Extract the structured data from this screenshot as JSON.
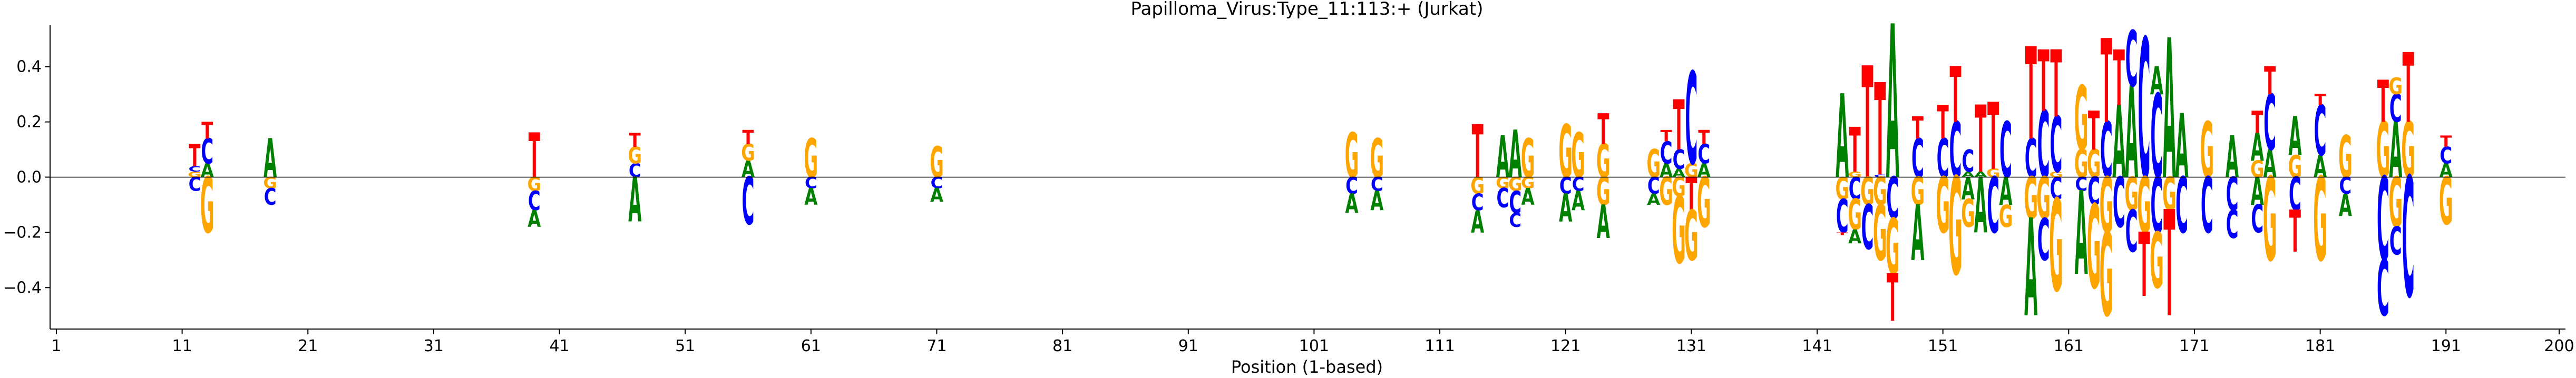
{
  "chart_data": {
    "type": "sequence-logo",
    "title": "Papilloma_Virus:Type_11:113:+  (Jurkat)",
    "xlabel": "Position (1-based)",
    "ylabel": "",
    "xlim": [
      1,
      200
    ],
    "ylim": [
      -0.55,
      0.55
    ],
    "x_ticks": [
      1,
      11,
      21,
      31,
      41,
      51,
      61,
      71,
      81,
      91,
      101,
      111,
      121,
      131,
      141,
      151,
      161,
      171,
      181,
      191,
      200
    ],
    "y_ticks": [
      -0.4,
      -0.2,
      0.0,
      0.2,
      0.4
    ],
    "y_tick_labels": [
      "−0.4",
      "−0.2",
      "0.0",
      "0.2",
      "0.4"
    ],
    "grid": false,
    "colors": {
      "A": "#008000",
      "C": "#0000ff",
      "G": "#ffa500",
      "T": "#ff0000"
    },
    "positions": [
      {
        "x": 12,
        "up": [
          [
            "G",
            0.02
          ],
          [
            "C",
            0.02
          ],
          [
            "T",
            0.08
          ]
        ],
        "down": [
          [
            "C",
            0.05
          ]
        ]
      },
      {
        "x": 13,
        "up": [
          [
            "A",
            0.05
          ],
          [
            "C",
            0.09
          ],
          [
            "T",
            0.06
          ]
        ],
        "down": [
          [
            "G",
            0.2
          ]
        ]
      },
      {
        "x": 18,
        "up": [
          [
            "A",
            0.14
          ]
        ],
        "down": [
          [
            "G",
            0.04
          ],
          [
            "C",
            0.06
          ]
        ]
      },
      {
        "x": 39,
        "up": [
          [
            "T",
            0.16
          ]
        ],
        "down": [
          [
            "G",
            0.05
          ],
          [
            "C",
            0.07
          ],
          [
            "A",
            0.06
          ]
        ]
      },
      {
        "x": 47,
        "up": [
          [
            "C",
            0.05
          ],
          [
            "G",
            0.06
          ],
          [
            "T",
            0.05
          ]
        ],
        "down": [
          [
            "A",
            0.16
          ]
        ]
      },
      {
        "x": 56,
        "up": [
          [
            "A",
            0.06
          ],
          [
            "G",
            0.06
          ],
          [
            "T",
            0.05
          ]
        ],
        "down": [
          [
            "C",
            0.17
          ]
        ]
      },
      {
        "x": 61,
        "up": [
          [
            "G",
            0.14
          ]
        ],
        "down": [
          [
            "C",
            0.04
          ],
          [
            "A",
            0.06
          ]
        ]
      },
      {
        "x": 71,
        "up": [
          [
            "G",
            0.11
          ]
        ],
        "down": [
          [
            "C",
            0.04
          ],
          [
            "A",
            0.05
          ]
        ]
      },
      {
        "x": 104,
        "up": [
          [
            "G",
            0.16
          ]
        ],
        "down": [
          [
            "C",
            0.06
          ],
          [
            "A",
            0.07
          ]
        ]
      },
      {
        "x": 106,
        "up": [
          [
            "G",
            0.14
          ]
        ],
        "down": [
          [
            "C",
            0.05
          ],
          [
            "A",
            0.07
          ]
        ]
      },
      {
        "x": 114,
        "up": [
          [
            "T",
            0.19
          ]
        ],
        "down": [
          [
            "G",
            0.06
          ],
          [
            "C",
            0.06
          ],
          [
            "A",
            0.08
          ]
        ]
      },
      {
        "x": 116,
        "up": [
          [
            "A",
            0.15
          ]
        ],
        "down": [
          [
            "G",
            0.04
          ],
          [
            "C",
            0.07
          ]
        ]
      },
      {
        "x": 117,
        "up": [
          [
            "A",
            0.17
          ]
        ],
        "down": [
          [
            "G",
            0.05
          ],
          [
            "C",
            0.08
          ],
          [
            "C",
            0.05
          ]
        ]
      },
      {
        "x": 118,
        "up": [
          [
            "G",
            0.14
          ]
        ],
        "down": [
          [
            "G",
            0.04
          ],
          [
            "A",
            0.06
          ]
        ]
      },
      {
        "x": 121,
        "up": [
          [
            "G",
            0.19
          ]
        ],
        "down": [
          [
            "C",
            0.06
          ],
          [
            "A",
            0.1
          ]
        ]
      },
      {
        "x": 122,
        "up": [
          [
            "G",
            0.16
          ]
        ],
        "down": [
          [
            "C",
            0.05
          ],
          [
            "A",
            0.07
          ]
        ]
      },
      {
        "x": 124,
        "up": [
          [
            "G",
            0.12
          ],
          [
            "T",
            0.11
          ]
        ],
        "down": [
          [
            "G",
            0.1
          ],
          [
            "A",
            0.12
          ]
        ]
      },
      {
        "x": 128,
        "up": [
          [
            "G",
            0.1
          ]
        ],
        "down": [
          [
            "C",
            0.06
          ],
          [
            "A",
            0.04
          ]
        ]
      },
      {
        "x": 129,
        "up": [
          [
            "A",
            0.05
          ],
          [
            "C",
            0.08
          ],
          [
            "T",
            0.04
          ]
        ],
        "down": [
          [
            "G",
            0.1
          ]
        ]
      },
      {
        "x": 130,
        "up": [
          [
            "A",
            0.03
          ],
          [
            "C",
            0.07
          ],
          [
            "T",
            0.18
          ]
        ],
        "down": [
          [
            "G",
            0.07
          ],
          [
            "G",
            0.24
          ]
        ]
      },
      {
        "x": 131,
        "up": [
          [
            "G",
            0.05
          ],
          [
            "C",
            0.33
          ]
        ],
        "down": [
          [
            "T",
            0.12
          ],
          [
            "G",
            0.18
          ]
        ]
      },
      {
        "x": 132,
        "up": [
          [
            "A",
            0.05
          ],
          [
            "C",
            0.07
          ],
          [
            "T",
            0.05
          ]
        ],
        "down": [
          [
            "G",
            0.18
          ]
        ]
      },
      {
        "x": 143,
        "up": [
          [
            "A",
            0.3
          ]
        ],
        "down": [
          [
            "G",
            0.08
          ],
          [
            "C",
            0.12
          ],
          [
            "T",
            0.01
          ]
        ]
      },
      {
        "x": 144,
        "up": [
          [
            "G",
            0.02
          ],
          [
            "T",
            0.16
          ]
        ],
        "down": [
          [
            "C",
            0.08
          ],
          [
            "G",
            0.11
          ],
          [
            "A",
            0.05
          ]
        ]
      },
      {
        "x": 145,
        "up": [
          [
            "T",
            0.4
          ]
        ],
        "down": [
          [
            "G",
            0.1
          ],
          [
            "C",
            0.16
          ]
        ]
      },
      {
        "x": 146,
        "up": [
          [
            "C",
            0.01
          ],
          [
            "T",
            0.33
          ]
        ],
        "down": [
          [
            "G",
            0.1
          ],
          [
            "G",
            0.2
          ]
        ]
      },
      {
        "x": 147,
        "up": [
          [
            "A",
            0.55
          ]
        ],
        "down": [
          [
            "C",
            0.15
          ],
          [
            "G",
            0.2
          ],
          [
            "T",
            0.17
          ]
        ]
      },
      {
        "x": 149,
        "up": [
          [
            "C",
            0.14
          ],
          [
            "T",
            0.08
          ]
        ],
        "down": [
          [
            "G",
            0.1
          ],
          [
            "A",
            0.2
          ]
        ]
      },
      {
        "x": 151,
        "up": [
          [
            "C",
            0.14
          ],
          [
            "T",
            0.12
          ]
        ],
        "down": [
          [
            "G",
            0.2
          ]
        ]
      },
      {
        "x": 152,
        "up": [
          [
            "C",
            0.2
          ],
          [
            "T",
            0.2
          ]
        ],
        "down": [
          [
            "G",
            0.35
          ]
        ]
      },
      {
        "x": 153,
        "up": [
          [
            "A",
            0.02
          ],
          [
            "C",
            0.08
          ]
        ],
        "down": [
          [
            "A",
            0.08
          ],
          [
            "G",
            0.1
          ]
        ]
      },
      {
        "x": 154,
        "up": [
          [
            "A",
            0.02
          ],
          [
            "T",
            0.24
          ]
        ],
        "down": [
          [
            "A",
            0.2
          ]
        ]
      },
      {
        "x": 155,
        "up": [
          [
            "G",
            0.03
          ],
          [
            "T",
            0.24
          ]
        ],
        "down": [
          [
            "C",
            0.2
          ]
        ]
      },
      {
        "x": 156,
        "up": [
          [
            "C",
            0.2
          ]
        ],
        "down": [
          [
            "A",
            0.1
          ],
          [
            "G",
            0.08
          ]
        ]
      },
      {
        "x": 158,
        "up": [
          [
            "C",
            0.14
          ],
          [
            "T",
            0.33
          ]
        ],
        "down": [
          [
            "G",
            0.15
          ],
          [
            "A",
            0.35
          ]
        ]
      },
      {
        "x": 159,
        "up": [
          [
            "C",
            0.24
          ],
          [
            "T",
            0.22
          ]
        ],
        "down": [
          [
            "G",
            0.15
          ],
          [
            "C",
            0.15
          ]
        ]
      },
      {
        "x": 160,
        "up": [
          [
            "G",
            0.02
          ],
          [
            "C",
            0.2
          ],
          [
            "T",
            0.24
          ]
        ],
        "down": [
          [
            "C",
            0.08
          ],
          [
            "G",
            0.33
          ]
        ]
      },
      {
        "x": 162,
        "up": [
          [
            "G",
            0.1
          ],
          [
            "G",
            0.23
          ]
        ],
        "down": [
          [
            "C",
            0.05
          ],
          [
            "A",
            0.3
          ]
        ]
      },
      {
        "x": 163,
        "up": [
          [
            "G",
            0.1
          ],
          [
            "T",
            0.14
          ]
        ],
        "down": [
          [
            "C",
            0.1
          ],
          [
            "G",
            0.3
          ]
        ]
      },
      {
        "x": 164,
        "up": [
          [
            "C",
            0.2
          ],
          [
            "T",
            0.3
          ]
        ],
        "down": [
          [
            "G",
            0.2
          ],
          [
            "G",
            0.3
          ]
        ]
      },
      {
        "x": 165,
        "up": [
          [
            "A",
            0.26
          ],
          [
            "T",
            0.2
          ]
        ],
        "down": [
          [
            "C",
            0.18
          ]
        ]
      },
      {
        "x": 166,
        "up": [
          [
            "A",
            0.33
          ],
          [
            "C",
            0.2
          ]
        ],
        "down": [
          [
            "G",
            0.12
          ],
          [
            "C",
            0.15
          ]
        ]
      },
      {
        "x": 167,
        "up": [
          [
            "C",
            0.5
          ]
        ],
        "down": [
          [
            "G",
            0.2
          ],
          [
            "T",
            0.23
          ]
        ]
      },
      {
        "x": 168,
        "up": [
          [
            "C",
            0.3
          ],
          [
            "A",
            0.1
          ]
        ],
        "down": [
          [
            "C",
            0.2
          ],
          [
            "G",
            0.2
          ]
        ]
      },
      {
        "x": 169,
        "up": [
          [
            "A",
            0.5
          ]
        ],
        "down": [
          [
            "G",
            0.12
          ],
          [
            "T",
            0.38
          ]
        ]
      },
      {
        "x": 170,
        "up": [
          [
            "A",
            0.23
          ]
        ],
        "down": [
          [
            "C",
            0.2
          ]
        ]
      },
      {
        "x": 172,
        "up": [
          [
            "G",
            0.2
          ]
        ],
        "down": [
          [
            "C",
            0.2
          ]
        ]
      },
      {
        "x": 174,
        "up": [
          [
            "A",
            0.15
          ]
        ],
        "down": [
          [
            "C",
            0.12
          ],
          [
            "C",
            0.1
          ]
        ]
      },
      {
        "x": 176,
        "up": [
          [
            "G",
            0.06
          ],
          [
            "A",
            0.1
          ],
          [
            "T",
            0.08
          ]
        ],
        "down": [
          [
            "A",
            0.1
          ],
          [
            "C",
            0.1
          ]
        ]
      },
      {
        "x": 177,
        "up": [
          [
            "A",
            0.1
          ],
          [
            "C",
            0.2
          ],
          [
            "T",
            0.1
          ]
        ],
        "down": [
          [
            "G",
            0.3
          ]
        ]
      },
      {
        "x": 179,
        "up": [
          [
            "G",
            0.08
          ],
          [
            "A",
            0.14
          ]
        ],
        "down": [
          [
            "C",
            0.12
          ],
          [
            "T",
            0.15
          ]
        ]
      },
      {
        "x": 181,
        "up": [
          [
            "A",
            0.08
          ],
          [
            "C",
            0.18
          ],
          [
            "T",
            0.04
          ]
        ],
        "down": [
          [
            "G",
            0.3
          ]
        ]
      },
      {
        "x": 183,
        "up": [
          [
            "G",
            0.15
          ]
        ],
        "down": [
          [
            "C",
            0.06
          ],
          [
            "A",
            0.08
          ]
        ]
      },
      {
        "x": 186,
        "up": [
          [
            "G",
            0.2
          ],
          [
            "T",
            0.15
          ]
        ],
        "down": [
          [
            "C",
            0.3
          ],
          [
            "C",
            0.2
          ]
        ]
      },
      {
        "x": 187,
        "up": [
          [
            "A",
            0.2
          ],
          [
            "C",
            0.1
          ],
          [
            "G",
            0.06
          ]
        ],
        "down": [
          [
            "G",
            0.18
          ],
          [
            "C",
            0.1
          ]
        ]
      },
      {
        "x": 188,
        "up": [
          [
            "G",
            0.2
          ],
          [
            "T",
            0.25
          ]
        ],
        "down": [
          [
            "C",
            0.43
          ]
        ]
      },
      {
        "x": 191,
        "up": [
          [
            "A",
            0.05
          ],
          [
            "C",
            0.06
          ],
          [
            "T",
            0.04
          ]
        ],
        "down": [
          [
            "G",
            0.17
          ]
        ]
      }
    ]
  }
}
